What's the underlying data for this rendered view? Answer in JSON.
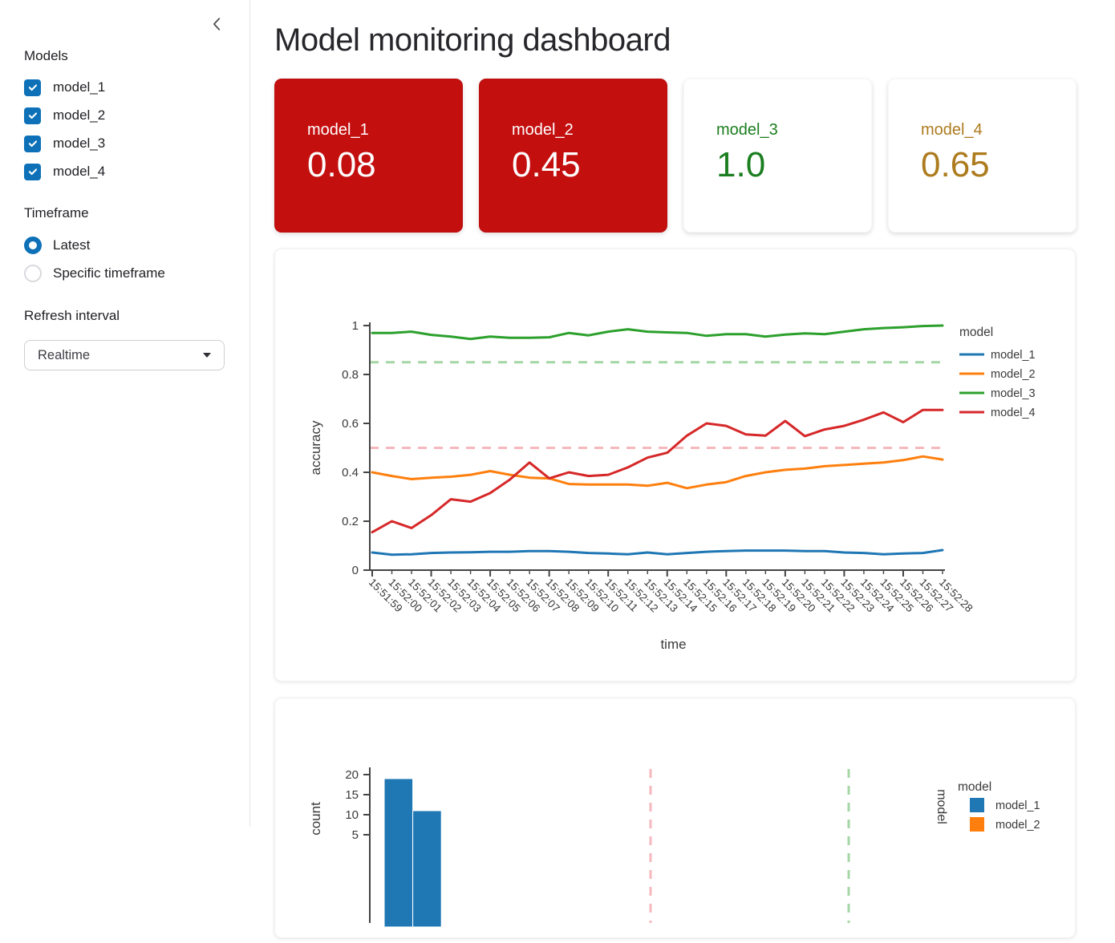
{
  "sidebar": {
    "models_label": "Models",
    "model_checkboxes": [
      {
        "label": "model_1",
        "checked": true
      },
      {
        "label": "model_2",
        "checked": true
      },
      {
        "label": "model_3",
        "checked": true
      },
      {
        "label": "model_4",
        "checked": true
      }
    ],
    "timeframe_label": "Timeframe",
    "timeframe_options": [
      {
        "label": "Latest",
        "selected": true
      },
      {
        "label": "Specific timeframe",
        "selected": false
      }
    ],
    "refresh_label": "Refresh interval",
    "refresh_value": "Realtime"
  },
  "header": {
    "title": "Model monitoring dashboard"
  },
  "metric_cards": [
    {
      "label": "model_1",
      "value": "0.08",
      "bg": "#c40f0f",
      "fg": "#ffffff"
    },
    {
      "label": "model_2",
      "value": "0.45",
      "bg": "#c40f0f",
      "fg": "#ffffff"
    },
    {
      "label": "model_3",
      "value": "1.0",
      "bg": "#ffffff",
      "fg": "#1b7e1f"
    },
    {
      "label": "model_4",
      "value": "0.65",
      "bg": "#ffffff",
      "fg": "#ad7b1e"
    }
  ],
  "colors": {
    "checkbox_blue": "#0e71b8",
    "axis_line": "#444444",
    "axis_text": "#3a3a3a",
    "ref_green": "#a5d6a5",
    "ref_pink": "#f5b8be"
  },
  "chart_data": [
    {
      "type": "line",
      "xlabel": "time",
      "ylabel": "accuracy",
      "ylim": [
        0,
        1
      ],
      "yticks": [
        0,
        0.2,
        0.4,
        0.6,
        0.8,
        1
      ],
      "legend_title": "model",
      "legend_position": "right",
      "grid": false,
      "x": [
        "15:51:59",
        "15:52:00",
        "15:52:01",
        "15:52:02",
        "15:52:03",
        "15:52:04",
        "15:52:05",
        "15:52:06",
        "15:52:07",
        "15:52:08",
        "15:52:09",
        "15:52:10",
        "15:52:11",
        "15:52:12",
        "15:52:13",
        "15:52:14",
        "15:52:15",
        "15:52:16",
        "15:52:17",
        "15:52:18",
        "15:52:19",
        "15:52:20",
        "15:52:21",
        "15:52:22",
        "15:52:23",
        "15:52:24",
        "15:52:25",
        "15:52:26",
        "15:52:27",
        "15:52:28"
      ],
      "series": [
        {
          "name": "model_1",
          "color": "#1f77b4",
          "values": [
            0.072,
            0.063,
            0.065,
            0.07,
            0.072,
            0.073,
            0.075,
            0.075,
            0.078,
            0.078,
            0.075,
            0.07,
            0.068,
            0.065,
            0.072,
            0.065,
            0.07,
            0.075,
            0.078,
            0.08,
            0.08,
            0.08,
            0.078,
            0.078,
            0.072,
            0.07,
            0.065,
            0.068,
            0.07,
            0.082
          ]
        },
        {
          "name": "model_2",
          "color": "#ff7f0e",
          "values": [
            0.4,
            0.385,
            0.372,
            0.378,
            0.382,
            0.39,
            0.405,
            0.39,
            0.378,
            0.375,
            0.352,
            0.35,
            0.35,
            0.35,
            0.345,
            0.357,
            0.335,
            0.35,
            0.36,
            0.385,
            0.4,
            0.41,
            0.415,
            0.425,
            0.43,
            0.435,
            0.44,
            0.45,
            0.465,
            0.452
          ]
        },
        {
          "name": "model_3",
          "color": "#2ca02c",
          "values": [
            0.97,
            0.97,
            0.975,
            0.962,
            0.955,
            0.945,
            0.955,
            0.95,
            0.95,
            0.952,
            0.97,
            0.96,
            0.975,
            0.985,
            0.975,
            0.972,
            0.97,
            0.958,
            0.965,
            0.965,
            0.955,
            0.963,
            0.968,
            0.965,
            0.975,
            0.985,
            0.99,
            0.993,
            0.998,
            1.0
          ]
        },
        {
          "name": "model_4",
          "color": "#d62728",
          "values": [
            0.155,
            0.2,
            0.172,
            0.225,
            0.29,
            0.28,
            0.315,
            0.37,
            0.44,
            0.375,
            0.4,
            0.385,
            0.39,
            0.42,
            0.46,
            0.48,
            0.55,
            0.6,
            0.59,
            0.555,
            0.55,
            0.61,
            0.548,
            0.575,
            0.59,
            0.615,
            0.645,
            0.605,
            0.655,
            0.655
          ]
        }
      ],
      "reference_lines": [
        {
          "value": 0.85,
          "color": "#a5d6a5",
          "style": "dashed"
        },
        {
          "value": 0.5,
          "color": "#f5b8be",
          "style": "dashed"
        }
      ]
    },
    {
      "type": "histogram",
      "ylabel": "count",
      "visible_yticks": [
        20,
        15,
        10
      ],
      "bar_color": "#1f77b4",
      "bars": [
        19,
        11
      ],
      "facet_label": "model",
      "legend_title": "model",
      "legend_items": [
        {
          "label": "model_1",
          "color": "#1f77b4"
        },
        {
          "label": "model_2",
          "color": "#ff7f0e"
        }
      ],
      "reference_lines_x": [
        {
          "color": "#f5b8be",
          "style": "dashed"
        },
        {
          "color": "#a5d6a5",
          "style": "dashed"
        }
      ]
    }
  ]
}
